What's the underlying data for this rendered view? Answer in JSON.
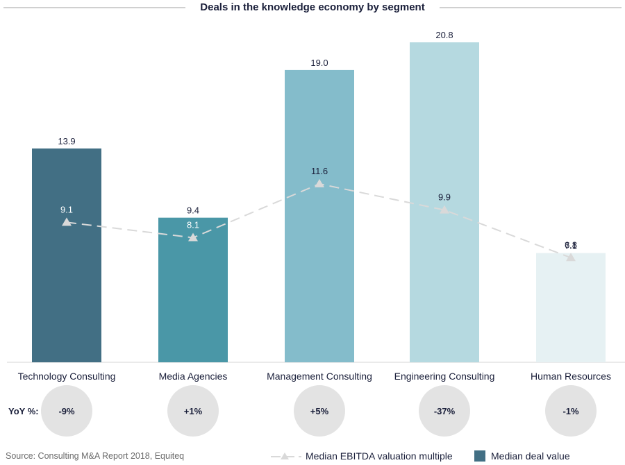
{
  "chart_data": {
    "type": "bar",
    "title": "Deals in the knowledge economy by segment",
    "categories": [
      "Technology Consulting",
      "Media Agencies",
      "Management Consulting",
      "Engineering Consulting",
      "Human Resources"
    ],
    "series": [
      {
        "name": "Median deal value",
        "type": "bar",
        "values": [
          13.9,
          9.4,
          19.0,
          20.8,
          7.1
        ],
        "value_labels": [
          "13.9",
          "9.4",
          "19.0",
          "20.8",
          "7.1"
        ],
        "colors": [
          "#426f84",
          "#4a97a7",
          "#84bccb",
          "#b5d9e0",
          "#e6f1f3"
        ]
      },
      {
        "name": "Median EBITDA valuation multiple",
        "type": "line",
        "style": "dashed",
        "marker": "triangle",
        "values": [
          9.1,
          8.1,
          11.6,
          9.9,
          6.8
        ],
        "value_labels": [
          "9.1",
          "8.1",
          "11.6",
          "9.9",
          "6.8"
        ],
        "label_colors": [
          "#ffffff",
          "#ffffff",
          "#1a1f3a",
          "#1a1f3a",
          "#1a1f3a"
        ],
        "color": "#d9d9d9"
      }
    ],
    "yoy": {
      "label": "YoY %:",
      "values": [
        "-9%",
        "+1%",
        "+5%",
        "-37%",
        "-1%"
      ]
    },
    "xlabel": "",
    "ylabel": "",
    "ylim": [
      0,
      21
    ],
    "grid": false,
    "legend_position": "bottom-right",
    "legend": [
      {
        "name": "Median EBITDA valuation multiple",
        "kind": "dashed-line-triangle",
        "color": "#d9d9d9"
      },
      {
        "name": "Median deal value",
        "kind": "square",
        "color": "#426f84"
      }
    ]
  },
  "footer": {
    "source": "Source: Consulting M&A Report 2018, Equiteq"
  }
}
